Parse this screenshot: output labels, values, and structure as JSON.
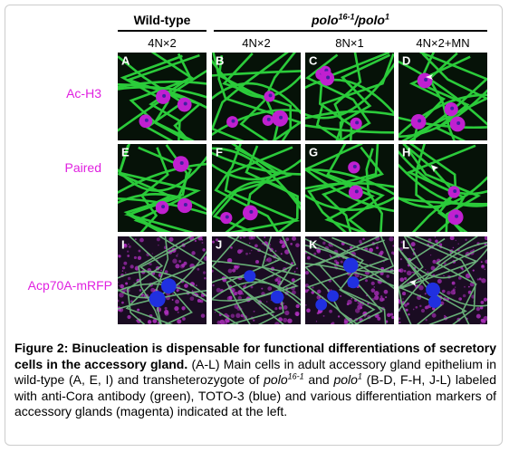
{
  "header": {
    "groups": [
      {
        "segments": [
          {
            "text": "Wild-type",
            "style": "normal"
          }
        ]
      },
      {
        "segments": [
          {
            "text": "polo",
            "style": "italic"
          },
          {
            "text": "16-1",
            "style": "italic-sup"
          },
          {
            "text": "/polo",
            "style": "italic"
          },
          {
            "text": "1",
            "style": "italic-sup"
          }
        ]
      }
    ],
    "columns": [
      "4N×2",
      "4N×2",
      "8N×1",
      "4N×2+MN"
    ]
  },
  "rows": [
    {
      "label": "Ac-H3",
      "panels": [
        "A",
        "B",
        "C",
        "D"
      ]
    },
    {
      "label": "Paired",
      "panels": [
        "E",
        "F",
        "G",
        "H"
      ]
    },
    {
      "label": "Acp70A-mRFP",
      "panels": [
        "I",
        "J",
        "K",
        "L"
      ]
    }
  ],
  "caption": {
    "segments": [
      {
        "text": "Figure 2: Binucleation is dispensable for functional differentiations of secretory cells in the accessory gland.",
        "style": "bold"
      },
      {
        "text": " (A-L) Main cells in adult accessory gland epithelium in wild-type (A, E, I) and transheterozygote of ",
        "style": "normal"
      },
      {
        "text": "polo",
        "style": "italic"
      },
      {
        "text": "16-1",
        "style": "italic-sup"
      },
      {
        "text": " and ",
        "style": "normal"
      },
      {
        "text": "polo",
        "style": "italic"
      },
      {
        "text": "1",
        "style": "italic-sup"
      },
      {
        "text": " (B-D, F-H, J-L) labeled with anti-Cora antibody (green), TOTO-3 (blue) and various differentiation markers of accessory glands (magenta) indicated at the left.",
        "style": "normal"
      }
    ]
  }
}
